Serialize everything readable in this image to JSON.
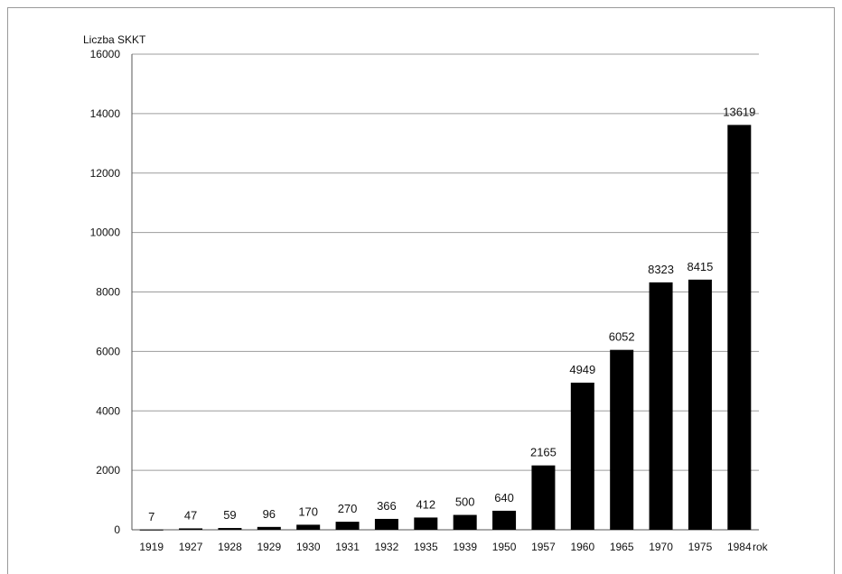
{
  "chart_data": {
    "type": "bar",
    "ylabel": "Liczba SKKT",
    "xlabel": "rok",
    "categories": [
      "1919",
      "1927",
      "1928",
      "1929",
      "1930",
      "1931",
      "1932",
      "1935",
      "1939",
      "1950",
      "1957",
      "1960",
      "1965",
      "1970",
      "1975",
      "1984"
    ],
    "values": [
      7,
      47,
      59,
      96,
      170,
      270,
      366,
      412,
      500,
      640,
      2165,
      4949,
      6052,
      8323,
      8415,
      13619
    ],
    "ylim": [
      0,
      16000
    ],
    "yticks": [
      0,
      2000,
      4000,
      6000,
      8000,
      10000,
      12000,
      14000,
      16000
    ],
    "grid": true,
    "bar_color": "#000000"
  }
}
